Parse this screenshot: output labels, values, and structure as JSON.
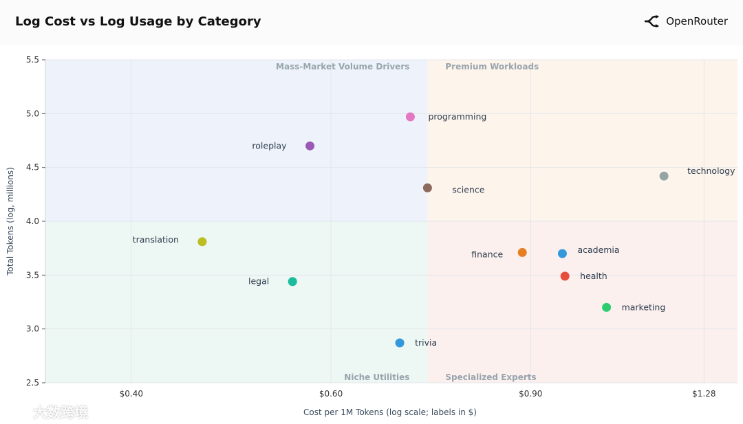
{
  "header": {
    "title": "Log Cost vs Log Usage by Category",
    "brand_name": "OpenRouter"
  },
  "watermark": {
    "text": "大数跨境"
  },
  "chart_data": {
    "type": "scatter",
    "title": "Log Cost vs Log Usage by Category",
    "xlabel": "Cost per 1M Tokens (log scale; labels in $)",
    "ylabel": "Total Tokens (log, millions)",
    "x_scale": "log",
    "xlim": [
      0.336,
      1.37
    ],
    "ylim": [
      2.5,
      5.5
    ],
    "x_ticks": [
      0.4,
      0.6,
      0.9,
      1.28
    ],
    "x_tick_labels": [
      "$0.40",
      "$0.60",
      "$0.90",
      "$1.28"
    ],
    "y_ticks": [
      2.5,
      3.0,
      3.5,
      4.0,
      4.5,
      5.0,
      5.5
    ],
    "y_tick_labels": [
      "2.5",
      "3.0",
      "3.5",
      "4.0",
      "4.5",
      "5.0",
      "5.5"
    ],
    "grid": true,
    "x_split": 0.73,
    "y_split": 4.0,
    "quadrants": [
      {
        "label": "Mass-Market Volume Drivers",
        "position": "top-left",
        "color": "#eef3fb"
      },
      {
        "label": "Premium Workloads",
        "position": "top-right",
        "color": "#fdf4ec"
      },
      {
        "label": "Niche Utilities",
        "position": "bottom-left",
        "color": "#edf7f4"
      },
      {
        "label": "Specialized Experts",
        "position": "bottom-right",
        "color": "#fbf0ee"
      }
    ],
    "points": [
      {
        "name": "programming",
        "x": 0.705,
        "y": 4.97,
        "color": "#e377c2",
        "label_side": "right"
      },
      {
        "name": "roleplay",
        "x": 0.575,
        "y": 4.7,
        "color": "#9b59b6",
        "label_side": "left"
      },
      {
        "name": "technology",
        "x": 1.18,
        "y": 4.42,
        "color": "#95a5a6",
        "label_side": "right"
      },
      {
        "name": "science",
        "x": 0.73,
        "y": 4.31,
        "color": "#8c6a5d",
        "label_side": "right-below"
      },
      {
        "name": "translation",
        "x": 0.462,
        "y": 3.81,
        "color": "#bcbd22",
        "label_side": "left"
      },
      {
        "name": "finance",
        "x": 0.885,
        "y": 3.71,
        "color": "#e67e22",
        "label_side": "left"
      },
      {
        "name": "academia",
        "x": 0.96,
        "y": 3.7,
        "color": "#3498db",
        "label_side": "right"
      },
      {
        "name": "health",
        "x": 0.965,
        "y": 3.49,
        "color": "#e74c3c",
        "label_side": "right"
      },
      {
        "name": "legal",
        "x": 0.555,
        "y": 3.44,
        "color": "#1abc9c",
        "label_side": "left"
      },
      {
        "name": "marketing",
        "x": 1.05,
        "y": 3.2,
        "color": "#2ecc71",
        "label_side": "right"
      },
      {
        "name": "trivia",
        "x": 0.69,
        "y": 2.87,
        "color": "#3498db",
        "label_side": "right"
      }
    ]
  }
}
